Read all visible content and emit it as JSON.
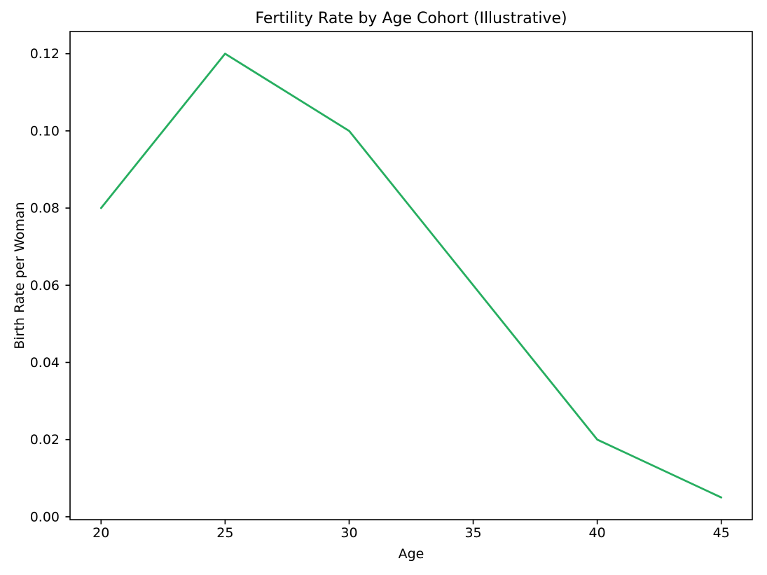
{
  "figure": {
    "background_color": "#ffffff"
  },
  "chart_data": {
    "type": "line",
    "title": "Fertility Rate by Age Cohort (Illustrative)",
    "xlabel": "Age",
    "ylabel": "Birth Rate per Woman",
    "x": [
      20,
      25,
      30,
      35,
      40,
      45
    ],
    "values": [
      0.08,
      0.12,
      0.1,
      0.06,
      0.02,
      0.005
    ],
    "line_color": "#27ae60",
    "axis_color": "#000000",
    "xlim": [
      18.75,
      46.25
    ],
    "ylim": [
      -0.00075,
      0.12575
    ],
    "xticks": {
      "values": [
        20,
        25,
        30,
        35,
        40,
        45
      ],
      "labels": [
        "20",
        "25",
        "30",
        "35",
        "40",
        "45"
      ]
    },
    "yticks": {
      "values": [
        0.0,
        0.02,
        0.04,
        0.06,
        0.08,
        0.1,
        0.12
      ],
      "labels": [
        "0.00",
        "0.02",
        "0.04",
        "0.06",
        "0.08",
        "0.10",
        "0.12"
      ]
    },
    "grid": false,
    "legend": false,
    "markers": false
  }
}
